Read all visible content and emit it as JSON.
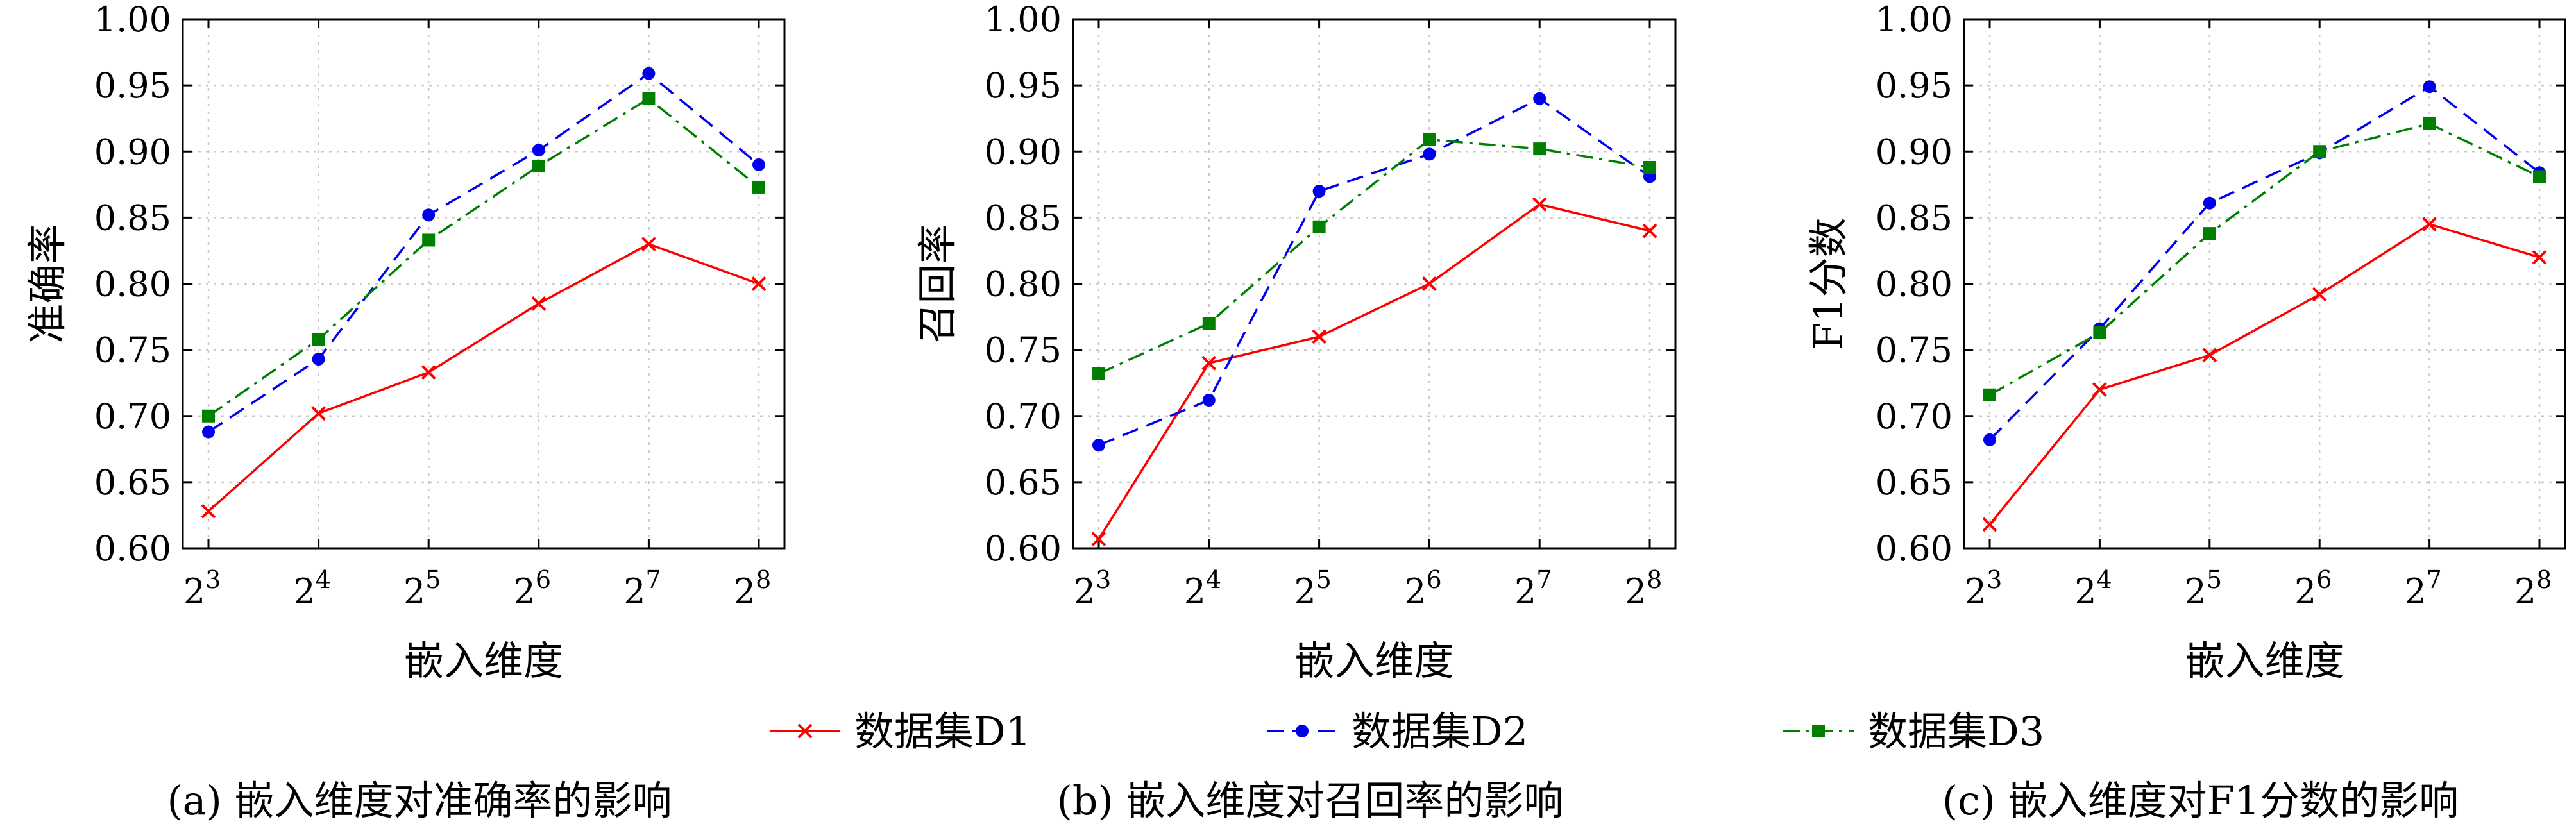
{
  "legend": [
    "数据集D1",
    "数据集D2",
    "数据集D3"
  ],
  "chart_data": [
    {
      "type": "line",
      "caption": "(a) 嵌入维度对准确率的影响",
      "xlabel": "嵌入维度",
      "ylabel": "准确率",
      "x_tick_base": "2",
      "x_exponents": [
        "3",
        "4",
        "5",
        "6",
        "7",
        "8"
      ],
      "x": [
        8,
        16,
        32,
        64,
        128,
        256
      ],
      "ylim": [
        0.6,
        1.0
      ],
      "yticks": [
        "0.60",
        "0.65",
        "0.70",
        "0.75",
        "0.80",
        "0.85",
        "0.90",
        "0.95",
        "1.00"
      ],
      "grid": true,
      "series": [
        {
          "name": "数据集D1",
          "values": [
            0.628,
            0.702,
            0.733,
            0.785,
            0.83,
            0.8
          ]
        },
        {
          "name": "数据集D2",
          "values": [
            0.688,
            0.743,
            0.852,
            0.901,
            0.959,
            0.89
          ]
        },
        {
          "name": "数据集D3",
          "values": [
            0.7,
            0.758,
            0.833,
            0.889,
            0.94,
            0.873
          ]
        }
      ]
    },
    {
      "type": "line",
      "caption": "(b) 嵌入维度对召回率的影响",
      "xlabel": "嵌入维度",
      "ylabel": "召回率",
      "x_tick_base": "2",
      "x_exponents": [
        "3",
        "4",
        "5",
        "6",
        "7",
        "8"
      ],
      "x": [
        8,
        16,
        32,
        64,
        128,
        256
      ],
      "ylim": [
        0.6,
        1.0
      ],
      "yticks": [
        "0.60",
        "0.65",
        "0.70",
        "0.75",
        "0.80",
        "0.85",
        "0.90",
        "0.95",
        "1.00"
      ],
      "grid": true,
      "series": [
        {
          "name": "数据集D1",
          "values": [
            0.607,
            0.74,
            0.76,
            0.8,
            0.86,
            0.84
          ]
        },
        {
          "name": "数据集D2",
          "values": [
            0.678,
            0.712,
            0.87,
            0.898,
            0.94,
            0.881
          ]
        },
        {
          "name": "数据集D3",
          "values": [
            0.732,
            0.77,
            0.843,
            0.909,
            0.902,
            0.888
          ]
        }
      ]
    },
    {
      "type": "line",
      "caption": "(c) 嵌入维度对F1分数的影响",
      "xlabel": "嵌入维度",
      "ylabel": "F1分数",
      "x_tick_base": "2",
      "x_exponents": [
        "3",
        "4",
        "5",
        "6",
        "7",
        "8"
      ],
      "x": [
        8,
        16,
        32,
        64,
        128,
        256
      ],
      "ylim": [
        0.6,
        1.0
      ],
      "yticks": [
        "0.60",
        "0.65",
        "0.70",
        "0.75",
        "0.80",
        "0.85",
        "0.90",
        "0.95",
        "1.00"
      ],
      "grid": true,
      "series": [
        {
          "name": "数据集D1",
          "values": [
            0.618,
            0.72,
            0.746,
            0.792,
            0.845,
            0.82
          ]
        },
        {
          "name": "数据集D2",
          "values": [
            0.682,
            0.766,
            0.861,
            0.899,
            0.949,
            0.884
          ]
        },
        {
          "name": "数据集D3",
          "values": [
            0.716,
            0.763,
            0.838,
            0.9,
            0.921,
            0.881
          ]
        }
      ]
    }
  ],
  "colors": {
    "D1": "#ff0000",
    "D2": "#0000ee",
    "D3": "#008000"
  }
}
